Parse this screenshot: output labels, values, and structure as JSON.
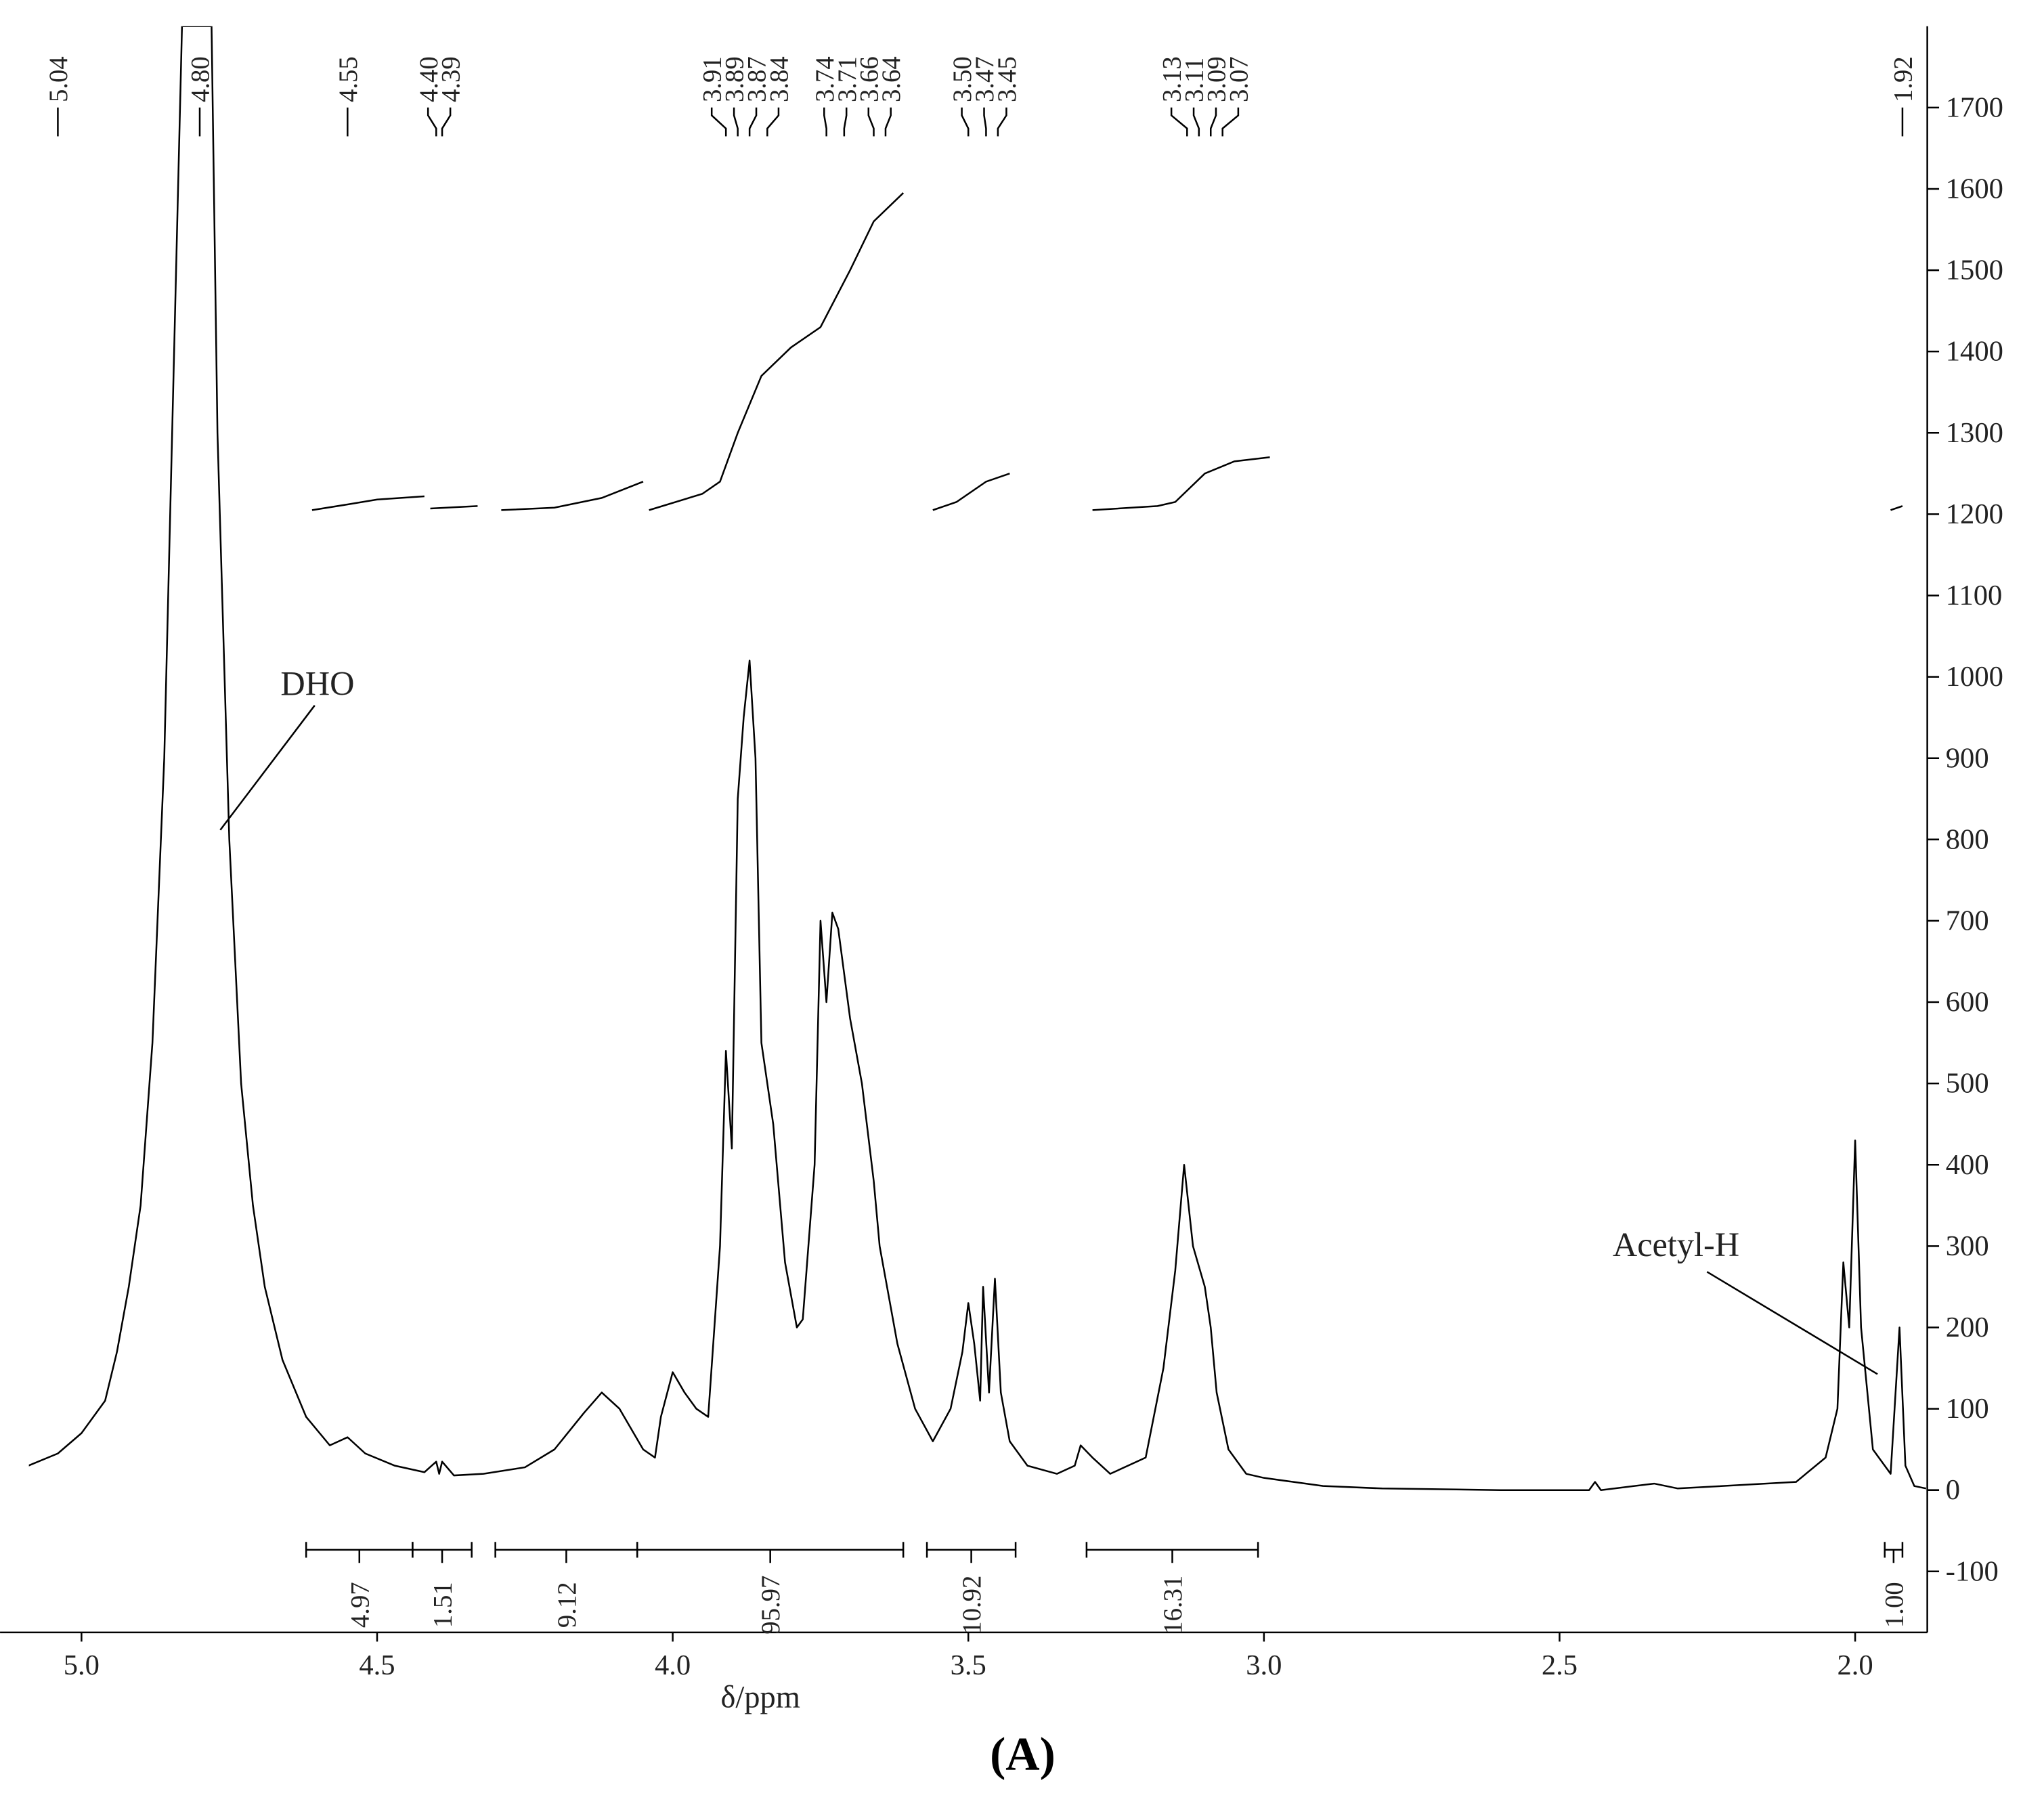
{
  "chart_data": {
    "type": "line",
    "xlabel": "δ/ppm",
    "caption": "(A)",
    "xlim": [
      5.089,
      1.878
    ],
    "ylim": [
      -175,
      1800
    ],
    "xticks": [
      {
        "value": 5,
        "label": "5.0"
      },
      4.5,
      {
        "value": 4,
        "label": "4.0"
      },
      3.5,
      {
        "value": 3,
        "label": "3.0"
      },
      2.5,
      {
        "value": 2,
        "label": "2.0"
      }
    ],
    "yticks": [
      -100,
      0,
      100,
      200,
      300,
      400,
      500,
      600,
      700,
      800,
      900,
      1000,
      1100,
      1200,
      1300,
      1400,
      1500,
      1600,
      1700
    ],
    "series": [
      {
        "color": "#000000",
        "x": [
          5.09,
          5.04,
          5.0,
          4.96,
          4.94,
          4.92,
          4.9,
          4.88,
          4.86,
          4.84,
          4.83,
          4.82,
          4.78,
          4.77,
          4.75,
          4.73,
          4.71,
          4.69,
          4.66,
          4.62,
          4.58,
          4.55,
          4.52,
          4.47,
          4.42,
          4.4,
          4.395,
          4.39,
          4.37,
          4.32,
          4.25,
          4.2,
          4.15,
          4.12,
          4.09,
          4.05,
          4.03,
          4.02,
          4.0,
          3.98,
          3.96,
          3.94,
          3.92,
          3.91,
          3.9,
          3.89,
          3.88,
          3.87,
          3.86,
          3.85,
          3.83,
          3.81,
          3.79,
          3.78,
          3.76,
          3.75,
          3.74,
          3.73,
          3.72,
          3.7,
          3.68,
          3.66,
          3.65,
          3.62,
          3.59,
          3.56,
          3.53,
          3.51,
          3.5,
          3.49,
          3.48,
          3.475,
          3.465,
          3.455,
          3.445,
          3.43,
          3.4,
          3.35,
          3.32,
          3.31,
          3.29,
          3.26,
          3.2,
          3.17,
          3.15,
          3.135,
          3.12,
          3.1,
          3.09,
          3.08,
          3.06,
          3.03,
          3.0,
          2.95,
          2.9,
          2.8,
          2.6,
          2.45,
          2.44,
          2.43,
          2.34,
          2.3,
          2.1,
          2.05,
          2.03,
          2.02,
          2.01,
          2.0,
          1.99,
          1.97,
          1.94,
          1.925,
          1.915,
          1.9,
          1.88
        ],
        "values": [
          30,
          45,
          70,
          110,
          170,
          250,
          350,
          550,
          900,
          1500,
          1800,
          1800,
          1800,
          1300,
          800,
          500,
          350,
          250,
          160,
          90,
          55,
          65,
          45,
          30,
          22,
          35,
          20,
          35,
          18,
          20,
          28,
          50,
          95,
          120,
          100,
          50,
          40,
          90,
          145,
          120,
          100,
          90,
          300,
          540,
          420,
          850,
          950,
          1020,
          900,
          550,
          450,
          280,
          200,
          210,
          400,
          700,
          600,
          710,
          690,
          580,
          500,
          380,
          300,
          180,
          100,
          60,
          100,
          170,
          230,
          180,
          110,
          250,
          120,
          260,
          120,
          60,
          30,
          20,
          30,
          55,
          40,
          20,
          40,
          150,
          270,
          400,
          300,
          250,
          200,
          120,
          50,
          20,
          15,
          10,
          5,
          2,
          0,
          0,
          10,
          0,
          8,
          2,
          10,
          40,
          100,
          280,
          200,
          430,
          200,
          50,
          20,
          200,
          30,
          5,
          2
        ]
      }
    ],
    "integral_curves": [
      {
        "x": [
          4.61,
          4.55,
          4.5,
          4.42
        ],
        "values": [
          1205,
          1212,
          1218,
          1222
        ]
      },
      {
        "x": [
          4.41,
          4.33
        ],
        "values": [
          1207,
          1210
        ]
      },
      {
        "x": [
          4.29,
          4.2,
          4.12,
          4.05
        ],
        "values": [
          1205,
          1208,
          1220,
          1240
        ]
      },
      {
        "x": [
          4.04,
          3.95,
          3.92,
          3.89,
          3.85,
          3.8,
          3.75,
          3.7,
          3.66,
          3.61
        ],
        "values": [
          1205,
          1225,
          1240,
          1300,
          1370,
          1405,
          1430,
          1500,
          1560,
          1595
        ]
      },
      {
        "x": [
          3.56,
          3.52,
          3.47,
          3.43
        ],
        "values": [
          1205,
          1215,
          1240,
          1250
        ]
      },
      {
        "x": [
          3.29,
          3.18,
          3.15,
          3.1,
          3.05,
          2.99
        ],
        "values": [
          1205,
          1210,
          1215,
          1250,
          1265,
          1270
        ]
      },
      {
        "x": [
          1.94,
          1.92
        ],
        "values": [
          1205,
          1210
        ]
      }
    ],
    "integrals": [
      {
        "from": 4.62,
        "to": 4.44,
        "label": "4.97"
      },
      {
        "from": 4.44,
        "to": 4.34,
        "label": "1.51"
      },
      {
        "from": 4.3,
        "to": 4.06,
        "label": "9.12"
      },
      {
        "from": 4.06,
        "to": 3.61,
        "label": "95.97"
      },
      {
        "from": 3.57,
        "to": 3.42,
        "label": "10.92"
      },
      {
        "from": 3.3,
        "to": 3.01,
        "label": "16.31"
      },
      {
        "from": 1.95,
        "to": 1.92,
        "label": "1.00"
      }
    ],
    "peaks": [
      {
        "value": 5.04,
        "label": "5.04"
      },
      {
        "value": 4.8,
        "label": "4.80"
      },
      {
        "value": 4.55,
        "label": "4.55"
      },
      {
        "value": 4.4,
        "label": "4.40"
      },
      {
        "value": 4.39,
        "label": "4.39"
      },
      {
        "value": 3.91,
        "label": "3.91"
      },
      {
        "value": 3.89,
        "label": "3.89"
      },
      {
        "value": 3.87,
        "label": "3.87"
      },
      {
        "value": 3.84,
        "label": "3.84"
      },
      {
        "value": 3.74,
        "label": "3.74"
      },
      {
        "value": 3.71,
        "label": "3.71"
      },
      {
        "value": 3.66,
        "label": "3.66"
      },
      {
        "value": 3.64,
        "label": "3.64"
      },
      {
        "value": 3.5,
        "label": "3.50"
      },
      {
        "value": 3.47,
        "label": "3.47"
      },
      {
        "value": 3.45,
        "label": "3.45"
      },
      {
        "value": 3.13,
        "label": "3.13"
      },
      {
        "value": 3.11,
        "label": "3.11"
      },
      {
        "value": 3.09,
        "label": "3.09"
      },
      {
        "value": 3.07,
        "label": "3.07"
      },
      {
        "value": 1.92,
        "label": "1.92"
      }
    ],
    "annotations": [
      "DHO",
      "Acetyl-H"
    ]
  }
}
